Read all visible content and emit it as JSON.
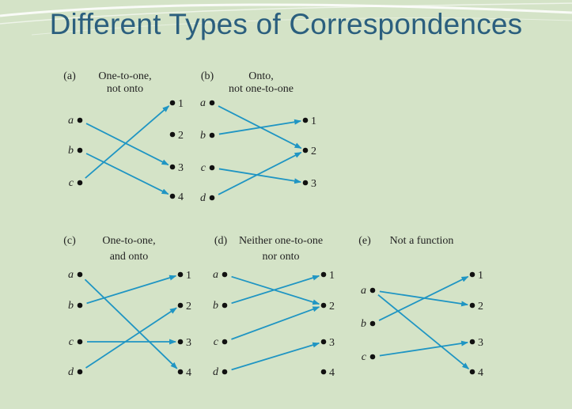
{
  "slide": {
    "title": "Different Types of Correspondences"
  },
  "colors": {
    "background": "#d4e3c7",
    "title": "#2b5f7e",
    "arrow": "#1f95c3",
    "dot": "#111111"
  },
  "panels": [
    {
      "id": "a",
      "tag": "(a)",
      "caption": [
        "One-to-one,",
        "not onto"
      ],
      "left": [
        "a",
        "b",
        "c"
      ],
      "right": [
        "1",
        "2",
        "3",
        "4"
      ],
      "arrows": [
        [
          "a",
          "3"
        ],
        [
          "b",
          "4"
        ],
        [
          "c",
          "1"
        ]
      ]
    },
    {
      "id": "b",
      "tag": "(b)",
      "caption": [
        "Onto,",
        "not one-to-one"
      ],
      "left": [
        "a",
        "b",
        "c",
        "d"
      ],
      "right": [
        "1",
        "2",
        "3"
      ],
      "arrows": [
        [
          "a",
          "2"
        ],
        [
          "b",
          "1"
        ],
        [
          "c",
          "3"
        ],
        [
          "d",
          "2"
        ]
      ]
    },
    {
      "id": "c",
      "tag": "(c)",
      "caption": [
        "One-to-one,",
        "and onto"
      ],
      "left": [
        "a",
        "b",
        "c",
        "d"
      ],
      "right": [
        "1",
        "2",
        "3",
        "4"
      ],
      "arrows": [
        [
          "a",
          "4"
        ],
        [
          "b",
          "1"
        ],
        [
          "c",
          "3"
        ],
        [
          "d",
          "2"
        ]
      ]
    },
    {
      "id": "d",
      "tag": "(d)",
      "caption": [
        "Neither one-to-one",
        "nor onto"
      ],
      "left": [
        "a",
        "b",
        "c",
        "d"
      ],
      "right": [
        "1",
        "2",
        "3",
        "4"
      ],
      "arrows": [
        [
          "a",
          "2"
        ],
        [
          "b",
          "1"
        ],
        [
          "c",
          "2"
        ],
        [
          "d",
          "3"
        ]
      ]
    },
    {
      "id": "e",
      "tag": "(e)",
      "caption": [
        "Not a function",
        ""
      ],
      "left": [
        "a",
        "b",
        "c"
      ],
      "right": [
        "1",
        "2",
        "3",
        "4"
      ],
      "arrows": [
        [
          "a",
          "2"
        ],
        [
          "a",
          "4"
        ],
        [
          "b",
          "1"
        ],
        [
          "c",
          "3"
        ]
      ]
    }
  ]
}
